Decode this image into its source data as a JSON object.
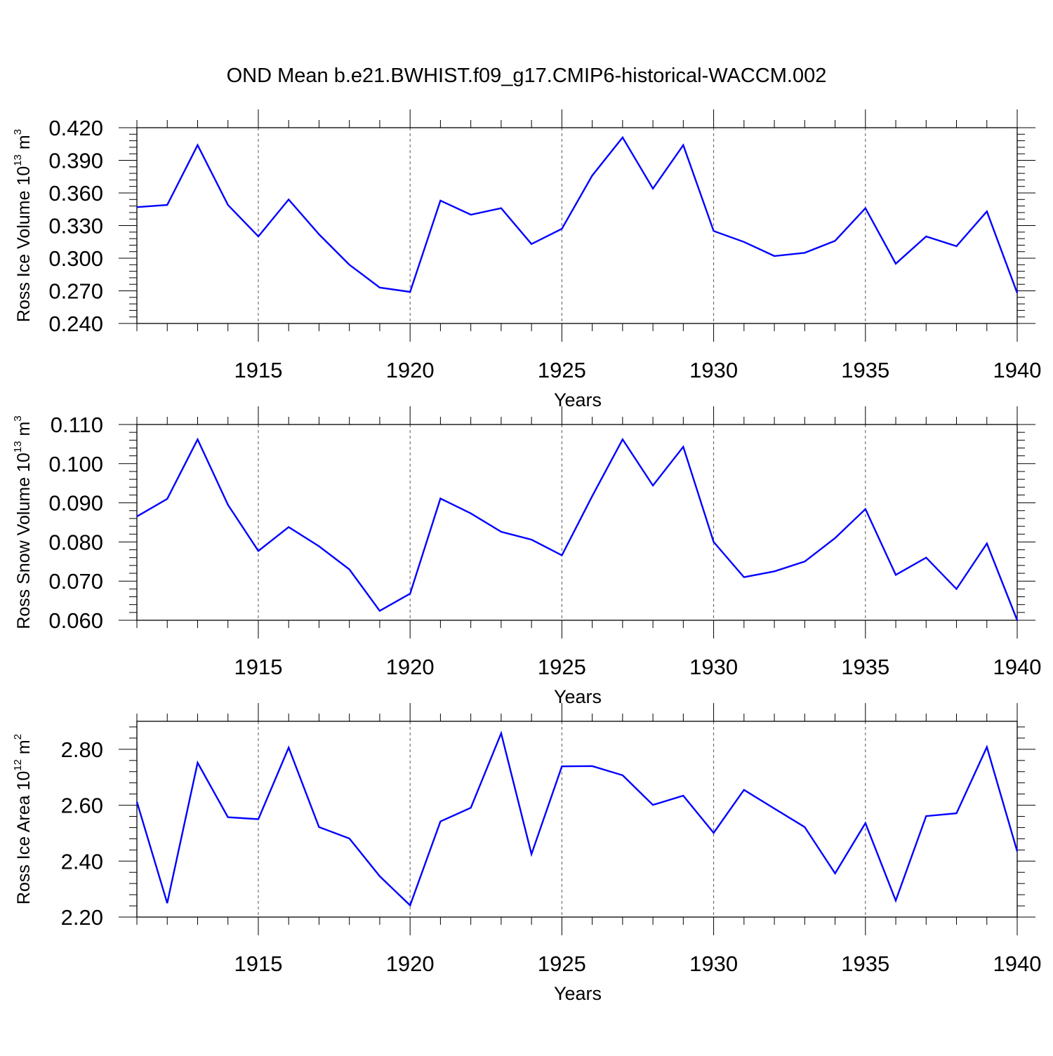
{
  "figure": {
    "title": "OND Mean b.e21.BWHIST.f09_g17.CMIP6-historical-WACCM.002",
    "line_color": "#0000ff"
  },
  "chart_data": [
    {
      "type": "line",
      "ylabel": "Ross Ice Volume 10",
      "ylabel_exp": "13",
      "ylabel_unit": " m",
      "ylabel_unit_exp": "3",
      "xlabel": "Years",
      "xlim": [
        1911,
        1940
      ],
      "ylim": [
        0.24,
        0.42
      ],
      "yticks": [
        0.24,
        0.27,
        0.3,
        0.33,
        0.36,
        0.39,
        0.42
      ],
      "ytick_labels": [
        "0.240",
        "0.270",
        "0.300",
        "0.330",
        "0.360",
        "0.390",
        "0.420"
      ],
      "xticks": [
        1915,
        1920,
        1925,
        1930,
        1935,
        1940
      ],
      "xtick_labels": [
        "1915",
        "1920",
        "1925",
        "1930",
        "1935",
        "1940"
      ],
      "grid": "vertical dashed at labeled years",
      "series": [
        {
          "x": [
            1911,
            1912,
            1913,
            1914,
            1915,
            1916,
            1917,
            1918,
            1919,
            1920,
            1921,
            1922,
            1923,
            1924,
            1925,
            1926,
            1927,
            1928,
            1929,
            1930,
            1931,
            1932,
            1933,
            1934,
            1935,
            1936,
            1937,
            1938,
            1939,
            1940
          ],
          "values": [
            0.347,
            0.349,
            0.404,
            0.349,
            0.32,
            0.354,
            0.322,
            0.294,
            0.273,
            0.269,
            0.353,
            0.34,
            0.346,
            0.313,
            0.327,
            0.376,
            0.411,
            0.364,
            0.404,
            0.325,
            0.315,
            0.302,
            0.305,
            0.316,
            0.346,
            0.295,
            0.32,
            0.311,
            0.343,
            0.268
          ]
        }
      ]
    },
    {
      "type": "line",
      "ylabel": "Ross Snow Volume 10",
      "ylabel_exp": "13",
      "ylabel_unit": " m",
      "ylabel_unit_exp": "3",
      "xlabel": "Years",
      "xlim": [
        1911,
        1940
      ],
      "ylim": [
        0.06,
        0.11
      ],
      "yticks": [
        0.06,
        0.07,
        0.08,
        0.09,
        0.1,
        0.11
      ],
      "ytick_labels": [
        "0.060",
        "0.070",
        "0.080",
        "0.090",
        "0.100",
        "0.110"
      ],
      "xticks": [
        1915,
        1920,
        1925,
        1930,
        1935,
        1940
      ],
      "xtick_labels": [
        "1915",
        "1920",
        "1925",
        "1930",
        "1935",
        "1940"
      ],
      "grid": "vertical dashed at labeled years",
      "series": [
        {
          "x": [
            1911,
            1912,
            1913,
            1914,
            1915,
            1916,
            1917,
            1918,
            1919,
            1920,
            1921,
            1922,
            1923,
            1924,
            1925,
            1926,
            1927,
            1928,
            1929,
            1930,
            1931,
            1932,
            1933,
            1934,
            1935,
            1936,
            1937,
            1938,
            1939,
            1940
          ],
          "values": [
            0.0865,
            0.091,
            0.1062,
            0.0895,
            0.0777,
            0.0838,
            0.0789,
            0.073,
            0.0624,
            0.0668,
            0.0911,
            0.0873,
            0.0826,
            0.0806,
            0.0766,
            0.0917,
            0.1062,
            0.0944,
            0.1043,
            0.08,
            0.071,
            0.0725,
            0.075,
            0.081,
            0.0884,
            0.0716,
            0.076,
            0.068,
            0.0796,
            0.06
          ]
        }
      ]
    },
    {
      "type": "line",
      "ylabel": "Ross Ice Area 10",
      "ylabel_exp": "12",
      "ylabel_unit": " m",
      "ylabel_unit_exp": "2",
      "xlabel": "Years",
      "xlim": [
        1911,
        1940
      ],
      "ylim": [
        2.2,
        2.9
      ],
      "yticks": [
        2.2,
        2.4,
        2.6,
        2.8
      ],
      "ytick_labels": [
        "2.20",
        "2.40",
        "2.60",
        "2.80"
      ],
      "xticks": [
        1915,
        1920,
        1925,
        1930,
        1935,
        1940
      ],
      "xtick_labels": [
        "1915",
        "1920",
        "1925",
        "1930",
        "1935",
        "1940"
      ],
      "grid": "vertical dashed at labeled years",
      "series": [
        {
          "x": [
            1911,
            1912,
            1913,
            1914,
            1915,
            1916,
            1917,
            1918,
            1919,
            1920,
            1921,
            1922,
            1923,
            1924,
            1925,
            1926,
            1927,
            1928,
            1929,
            1930,
            1931,
            1932,
            1933,
            1934,
            1935,
            1936,
            1937,
            1938,
            1939,
            1940
          ],
          "values": [
            2.612,
            2.25,
            2.752,
            2.557,
            2.55,
            2.806,
            2.522,
            2.481,
            2.346,
            2.242,
            2.542,
            2.591,
            2.857,
            2.425,
            2.739,
            2.74,
            2.707,
            2.601,
            2.634,
            2.501,
            2.655,
            2.588,
            2.522,
            2.356,
            2.536,
            2.259,
            2.561,
            2.571,
            2.808,
            2.435
          ]
        }
      ]
    }
  ]
}
